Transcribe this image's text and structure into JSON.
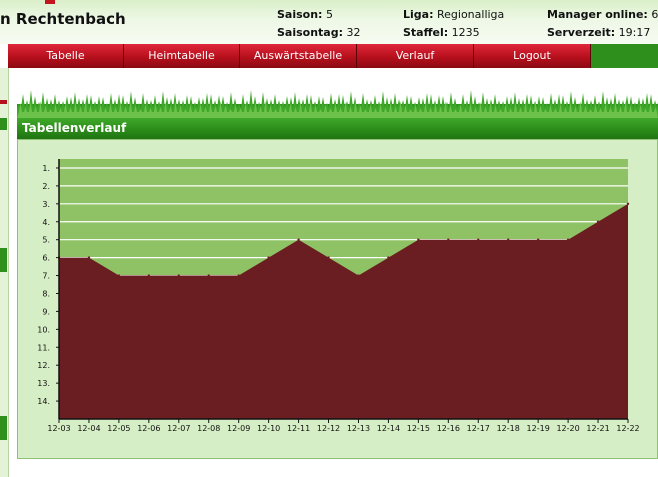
{
  "header": {
    "team_name": "n Rechtenbach",
    "saison_label": "Saison:",
    "saison_value": "5",
    "saisontag_label": "Saisontag:",
    "saisontag_value": "32",
    "liga_label": "Liga:",
    "liga_value": "Regionalliga",
    "staffel_label": "Staffel:",
    "staffel_value": "1235",
    "manager_label": "Manager online:",
    "manager_value": "6",
    "serverzeit_label": "Serverzeit:",
    "serverzeit_value": "19:17"
  },
  "nav": {
    "tabs": [
      {
        "label": "Tabelle"
      },
      {
        "label": "Heimtabelle"
      },
      {
        "label": "Auswärtstabelle"
      },
      {
        "label": "Verlauf"
      },
      {
        "label": "Logout"
      }
    ]
  },
  "panel": {
    "title": "Tabellenverlauf"
  },
  "colors": {
    "area_fill": "#6b1e22",
    "plot_bg": "#8fc264",
    "gridline": "#ffffff",
    "header_green": "#2a8a18",
    "tab_red": "#b6101c"
  },
  "chart_data": {
    "type": "area",
    "y_inverted": true,
    "ylim": [
      0.5,
      15
    ],
    "y_ticks": [
      "1.",
      "2.",
      "3.",
      "4.",
      "5.",
      "6.",
      "7.",
      "8.",
      "9.",
      "10.",
      "11.",
      "12.",
      "13.",
      "14."
    ],
    "categories": [
      "12-03",
      "12-04",
      "12-05",
      "12-06",
      "12-07",
      "12-08",
      "12-09",
      "12-10",
      "12-11",
      "12-12",
      "12-13",
      "12-14",
      "12-15",
      "12-16",
      "12-17",
      "12-18",
      "12-19",
      "12-20",
      "12-21",
      "12-22"
    ],
    "series": [
      {
        "values": [
          6,
          6,
          7,
          7,
          7,
          7,
          7,
          6,
          5,
          6,
          7,
          6,
          5,
          5,
          5,
          5,
          5,
          5,
          4,
          3
        ]
      }
    ],
    "grid": true
  }
}
